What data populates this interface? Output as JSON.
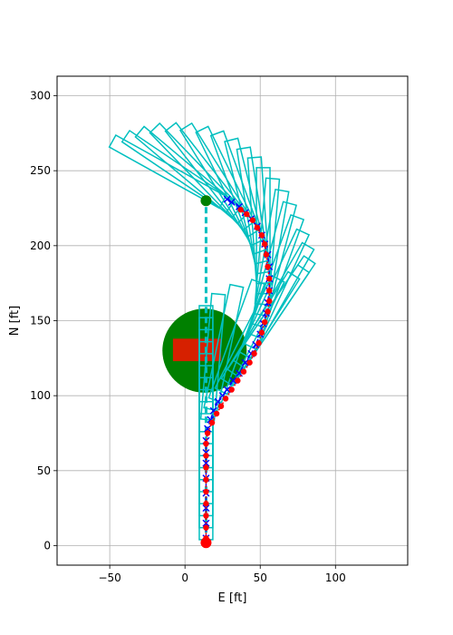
{
  "chart_data": {
    "type": "scatter",
    "title": "",
    "xlabel": "E [ft]",
    "ylabel": "N [ft]",
    "xlim": [
      -85,
      148
    ],
    "ylim": [
      -13,
      313
    ],
    "xticks": [
      -50,
      0,
      50,
      100
    ],
    "yticks": [
      0,
      50,
      100,
      150,
      200,
      250,
      300
    ],
    "xtick_labels": [
      "−50",
      "0",
      "50",
      "100"
    ],
    "ytick_labels": [
      "0",
      "50",
      "100",
      "150",
      "200",
      "250",
      "300"
    ],
    "grid": true,
    "legend": "none",
    "colors": {
      "footprint": "#00bfbf",
      "guide": "#00bfbf",
      "planned": "#0000ff",
      "actual": "#ff0000",
      "goal": "#008000",
      "start": "#ff0000",
      "obstacle_zone": "#008000",
      "obstacle": "#d62000",
      "grid": "#b0b0b0"
    },
    "start_point": {
      "x": 14,
      "y": 2
    },
    "goal_point": {
      "x": 14,
      "y": 230
    },
    "guide_line": [
      {
        "x": 14,
        "y": 2
      },
      {
        "x": 14,
        "y": 230
      }
    ],
    "obstacle_zone": {
      "cx": 13,
      "cy": 130,
      "r": 28
    },
    "obstacle_rect": {
      "x0": -8,
      "x1": 24,
      "y0": 123,
      "y1": 138
    },
    "planned_path": [
      {
        "x": 14,
        "y": 5
      },
      {
        "x": 14,
        "y": 15
      },
      {
        "x": 14,
        "y": 25
      },
      {
        "x": 14,
        "y": 35
      },
      {
        "x": 14,
        "y": 45
      },
      {
        "x": 14,
        "y": 55
      },
      {
        "x": 14,
        "y": 62
      },
      {
        "x": 14,
        "y": 70
      },
      {
        "x": 15,
        "y": 78
      },
      {
        "x": 17,
        "y": 84
      },
      {
        "x": 19,
        "y": 90
      },
      {
        "x": 22,
        "y": 96
      },
      {
        "x": 25,
        "y": 100
      },
      {
        "x": 28,
        "y": 104
      },
      {
        "x": 32,
        "y": 110
      },
      {
        "x": 36,
        "y": 115
      },
      {
        "x": 40,
        "y": 122
      },
      {
        "x": 44,
        "y": 128
      },
      {
        "x": 47,
        "y": 134
      },
      {
        "x": 50,
        "y": 141
      },
      {
        "x": 52,
        "y": 148
      },
      {
        "x": 54,
        "y": 155
      },
      {
        "x": 55,
        "y": 162
      },
      {
        "x": 56,
        "y": 170
      },
      {
        "x": 56,
        "y": 178
      },
      {
        "x": 56,
        "y": 186
      },
      {
        "x": 55,
        "y": 194
      },
      {
        "x": 53,
        "y": 201
      },
      {
        "x": 51,
        "y": 207
      },
      {
        "x": 48,
        "y": 213
      },
      {
        "x": 44,
        "y": 218
      },
      {
        "x": 40,
        "y": 222
      },
      {
        "x": 36,
        "y": 226
      },
      {
        "x": 31,
        "y": 229
      },
      {
        "x": 28,
        "y": 231
      }
    ],
    "actual_path": [
      {
        "x": 14,
        "y": 5
      },
      {
        "x": 14,
        "y": 12
      },
      {
        "x": 14,
        "y": 20
      },
      {
        "x": 14,
        "y": 28
      },
      {
        "x": 14,
        "y": 36
      },
      {
        "x": 14,
        "y": 44
      },
      {
        "x": 14,
        "y": 52
      },
      {
        "x": 14,
        "y": 60
      },
      {
        "x": 14,
        "y": 68
      },
      {
        "x": 15,
        "y": 75
      },
      {
        "x": 18,
        "y": 82
      },
      {
        "x": 21,
        "y": 88
      },
      {
        "x": 24,
        "y": 93
      },
      {
        "x": 27,
        "y": 98
      },
      {
        "x": 31,
        "y": 104
      },
      {
        "x": 35,
        "y": 110
      },
      {
        "x": 39,
        "y": 116
      },
      {
        "x": 43,
        "y": 122
      },
      {
        "x": 46,
        "y": 128
      },
      {
        "x": 49,
        "y": 135
      },
      {
        "x": 51,
        "y": 142
      },
      {
        "x": 53,
        "y": 149
      },
      {
        "x": 55,
        "y": 156
      },
      {
        "x": 56,
        "y": 163
      },
      {
        "x": 56,
        "y": 170
      },
      {
        "x": 56,
        "y": 178
      },
      {
        "x": 55,
        "y": 186
      },
      {
        "x": 54,
        "y": 194
      },
      {
        "x": 53,
        "y": 201
      },
      {
        "x": 51,
        "y": 207
      },
      {
        "x": 48,
        "y": 212
      },
      {
        "x": 45,
        "y": 217
      },
      {
        "x": 41,
        "y": 221
      },
      {
        "x": 37,
        "y": 224
      }
    ],
    "footprints": [
      {
        "x": 14,
        "y": 4,
        "heading": 0
      },
      {
        "x": 14,
        "y": 12,
        "heading": 0
      },
      {
        "x": 14,
        "y": 20,
        "heading": 0
      },
      {
        "x": 14,
        "y": 28,
        "heading": 0
      },
      {
        "x": 14,
        "y": 36,
        "heading": 0
      },
      {
        "x": 14,
        "y": 44,
        "heading": 0
      },
      {
        "x": 14,
        "y": 52,
        "heading": 0
      },
      {
        "x": 14,
        "y": 60,
        "heading": 0
      },
      {
        "x": 14,
        "y": 68,
        "heading": 0
      },
      {
        "x": 14,
        "y": 76,
        "heading": 0
      },
      {
        "x": 15,
        "y": 84,
        "heading": 5
      },
      {
        "x": 17,
        "y": 91,
        "heading": 12
      },
      {
        "x": 20,
        "y": 97,
        "heading": 20
      },
      {
        "x": 24,
        "y": 103,
        "heading": 27
      },
      {
        "x": 28,
        "y": 109,
        "heading": 32
      },
      {
        "x": 32,
        "y": 115,
        "heading": 34
      },
      {
        "x": 36,
        "y": 121,
        "heading": 34
      },
      {
        "x": 40,
        "y": 127,
        "heading": 30
      },
      {
        "x": 43,
        "y": 133,
        "heading": 25
      },
      {
        "x": 46,
        "y": 140,
        "heading": 20
      },
      {
        "x": 48,
        "y": 147,
        "heading": 15
      },
      {
        "x": 50,
        "y": 154,
        "heading": 10
      },
      {
        "x": 51,
        "y": 161,
        "heading": 5
      },
      {
        "x": 52,
        "y": 168,
        "heading": 0
      },
      {
        "x": 52,
        "y": 175,
        "heading": -4
      },
      {
        "x": 52,
        "y": 182,
        "heading": -9
      },
      {
        "x": 51,
        "y": 189,
        "heading": -14
      },
      {
        "x": 50,
        "y": 196,
        "heading": -20
      },
      {
        "x": 48,
        "y": 202,
        "heading": -26
      },
      {
        "x": 45,
        "y": 208,
        "heading": -32
      },
      {
        "x": 42,
        "y": 213,
        "heading": -38
      },
      {
        "x": 38,
        "y": 218,
        "heading": -44
      },
      {
        "x": 34,
        "y": 222,
        "heading": -50
      },
      {
        "x": 30,
        "y": 226,
        "heading": -56
      },
      {
        "x": 25,
        "y": 229,
        "heading": -61
      }
    ],
    "footprint_size": {
      "width": 9,
      "length": 84
    }
  }
}
